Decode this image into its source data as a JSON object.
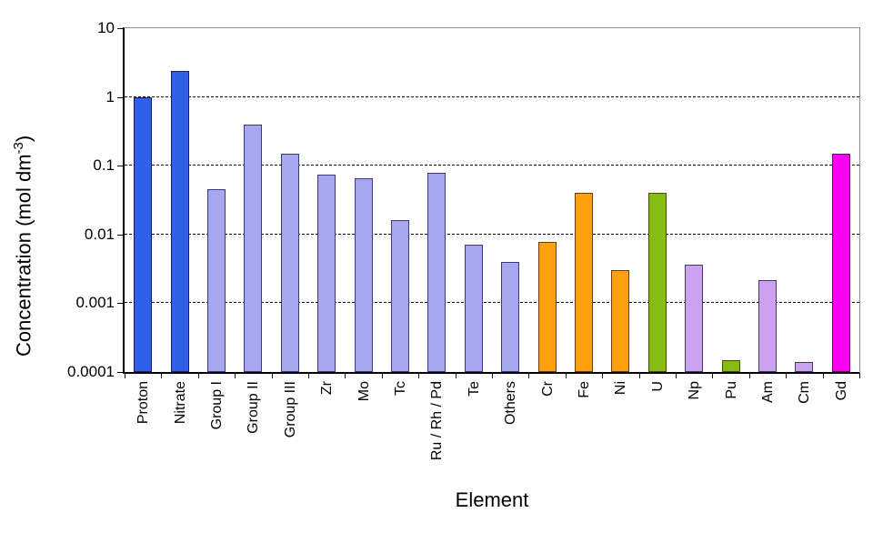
{
  "chart_data": {
    "type": "bar",
    "title": "",
    "xlabel": "Element",
    "ylabel": {
      "prefix": "Concentration (mol dm",
      "superscript": "-3",
      "suffix": ")"
    },
    "y_scale": "log10",
    "ylim": [
      0.0001,
      10
    ],
    "y_tick_labels": [
      "10",
      "1",
      "0.1",
      "0.01",
      "0.001",
      "0.0001"
    ],
    "grid": {
      "horizontal_decade_lines": true,
      "style": "dashed",
      "color": "#000000"
    },
    "legend": "none",
    "frame": {
      "axis_color": "#000000",
      "top_right_border_color": "#8f8f8f"
    },
    "categories": [
      "Proton",
      "Nitrate",
      "Group I",
      "Group II",
      "Group III",
      "Zr",
      "Mo",
      "Tc",
      "Ru / Rh / Pd",
      "Te",
      "Others",
      "Cr",
      "Fe",
      "Ni",
      "U",
      "Np",
      "Pu",
      "Am",
      "Cm",
      "Gd"
    ],
    "bars": [
      {
        "label": "Proton",
        "value": 1.0,
        "fill": "#3060EA",
        "border": "#1C1C66"
      },
      {
        "label": "Nitrate",
        "value": 2.4,
        "fill": "#3060EA",
        "border": "#1C1C66"
      },
      {
        "label": "Group I",
        "value": 0.045,
        "fill": "#A7A7F0",
        "border": "#3A3A80"
      },
      {
        "label": "Group II",
        "value": 0.4,
        "fill": "#A7A7F0",
        "border": "#3A3A80"
      },
      {
        "label": "Group III",
        "value": 0.15,
        "fill": "#A7A7F0",
        "border": "#3A3A80"
      },
      {
        "label": "Zr",
        "value": 0.075,
        "fill": "#A7A7F0",
        "border": "#3A3A80"
      },
      {
        "label": "Mo",
        "value": 0.065,
        "fill": "#A7A7F0",
        "border": "#3A3A80"
      },
      {
        "label": "Tc",
        "value": 0.016,
        "fill": "#A7A7F0",
        "border": "#3A3A80"
      },
      {
        "label": "Ru / Rh / Pd",
        "value": 0.078,
        "fill": "#A7A7F0",
        "border": "#3A3A80"
      },
      {
        "label": "Te",
        "value": 0.0072,
        "fill": "#A7A7F0",
        "border": "#3A3A80"
      },
      {
        "label": "Others",
        "value": 0.004,
        "fill": "#A7A7F0",
        "border": "#3A3A80"
      },
      {
        "label": "Cr",
        "value": 0.0078,
        "fill": "#FFA00D",
        "border": "#6E3C00"
      },
      {
        "label": "Fe",
        "value": 0.04,
        "fill": "#FFA00D",
        "border": "#6E3C00"
      },
      {
        "label": "Ni",
        "value": 0.003,
        "fill": "#FFA00D",
        "border": "#6E3C00"
      },
      {
        "label": "U",
        "value": 0.04,
        "fill": "#86BD10",
        "border": "#3A5400"
      },
      {
        "label": "Np",
        "value": 0.0036,
        "fill": "#CBA2F0",
        "border": "#503070"
      },
      {
        "label": "Pu",
        "value": 0.00015,
        "fill": "#86BD10",
        "border": "#3A5400"
      },
      {
        "label": "Am",
        "value": 0.0022,
        "fill": "#CBA2F0",
        "border": "#503070"
      },
      {
        "label": "Cm",
        "value": 0.00014,
        "fill": "#CBA2F0",
        "border": "#503070"
      },
      {
        "label": "Gd",
        "value": 0.15,
        "fill": "#FA00F0",
        "border": "#6E006E"
      }
    ]
  }
}
